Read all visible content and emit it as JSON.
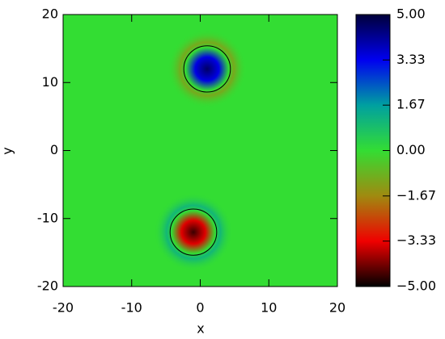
{
  "chart_data": {
    "type": "heatmap",
    "xlabel": "x",
    "ylabel": "y",
    "xlim": [
      -20,
      20
    ],
    "ylim": [
      -20,
      20
    ],
    "xticks": [
      -20,
      -10,
      0,
      10,
      20
    ],
    "yticks": [
      -20,
      -10,
      0,
      10,
      20
    ],
    "background": 0,
    "blobs": [
      {
        "x": 1,
        "y": 12,
        "peak": 4.6,
        "halo": -1.3,
        "r": 3.2,
        "contour_r": 3.4
      },
      {
        "x": -1,
        "y": -12,
        "peak": -4.6,
        "halo": 1.3,
        "r": 3.2,
        "contour_r": 3.4
      }
    ],
    "colormap": [
      "#000000",
      "#f00000",
      "#a08a10",
      "#33dd33",
      "#00a0a0",
      "#0000f0",
      "#00003a"
    ],
    "clim": [
      -5,
      5
    ],
    "colorbar_ticks": [
      {
        "value": 5,
        "label": "5.00"
      },
      {
        "value": 3.33,
        "label": "3.33"
      },
      {
        "value": 1.67,
        "label": "1.67"
      },
      {
        "value": 0,
        "label": "0.00"
      },
      {
        "value": -1.67,
        "label": "−1.67"
      },
      {
        "value": -3.33,
        "label": "−3.33"
      },
      {
        "value": -5,
        "label": "−5.00"
      }
    ]
  }
}
